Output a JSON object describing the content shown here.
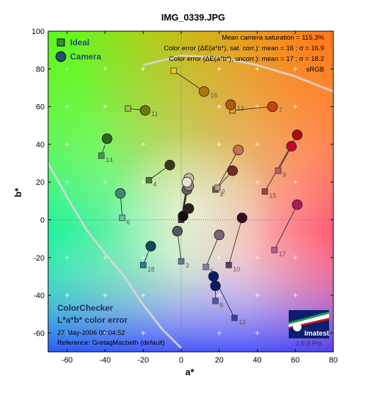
{
  "chart_data": {
    "type": "scatter",
    "title": "IMG_0339.JPG",
    "xlabel": "a*",
    "ylabel": "b*",
    "xlim": [
      -70,
      80
    ],
    "ylim": [
      -70,
      100
    ],
    "xticks": [
      -60,
      -40,
      -20,
      0,
      20,
      40,
      60,
      80
    ],
    "yticks": [
      -60,
      -40,
      -20,
      0,
      20,
      40,
      60,
      80,
      100
    ],
    "grid": true,
    "legend": {
      "placement": "top-left",
      "entries": [
        {
          "name": "Ideal",
          "marker": "square",
          "color": "#3a8a3a"
        },
        {
          "name": "Camera",
          "marker": "circle",
          "color": "#1f4f73"
        }
      ]
    },
    "stats": [
      "Mean camera saturation = 115.3%",
      "Color error (ΔE(a*b*), sat. corr.):  mean = 16 ;  σ = 16.9",
      "Color error (ΔE(a*b*), uncorr.):  mean = 17 ;  σ = 18.2",
      "sRGB"
    ],
    "info": {
      "line1": "ColorChecker",
      "line2": "L*a*b* color error",
      "date": "27-May-2006 00:04:52",
      "reference": "Reference: GretagMacbeth (default)"
    },
    "logo": {
      "name": "Imatest",
      "version": "1.6.9  Pro"
    },
    "patches": [
      {
        "id": "1",
        "ideal": [
          18,
          16
        ],
        "camera": [
          27,
          26
        ],
        "ideal_color": "#73523f",
        "camera_color": "#7a2a22"
      },
      {
        "id": "2",
        "ideal": [
          19,
          17
        ],
        "camera": [
          30,
          37
        ],
        "ideal_color": "#c2967d",
        "camera_color": "#c8704f"
      },
      {
        "id": "3",
        "ideal": [
          0,
          -22
        ],
        "camera": [
          -2,
          -6
        ],
        "ideal_color": "#5e7a9c",
        "camera_color": "#505a64"
      },
      {
        "id": "4",
        "ideal": [
          -17,
          21
        ],
        "camera": [
          -6,
          29
        ],
        "ideal_color": "#5a6b3e",
        "camera_color": "#3a3a14"
      },
      {
        "id": "5",
        "ideal": [
          13,
          -25
        ],
        "camera": [
          20,
          -8
        ],
        "ideal_color": "#8182b2",
        "camera_color": "#7a6578"
      },
      {
        "id": "6",
        "ideal": [
          -31,
          1
        ],
        "camera": [
          -32,
          14
        ],
        "ideal_color": "#66bcaa",
        "camera_color": "#3f8a72"
      },
      {
        "id": "7",
        "ideal": [
          27,
          58
        ],
        "camera": [
          48,
          60
        ],
        "ideal_color": "#da7f32",
        "camera_color": "#c8420e"
      },
      {
        "id": "8",
        "ideal": [
          18,
          -43
        ],
        "camera": [
          18,
          -35
        ],
        "ideal_color": "#4959a4",
        "camera_color": "#0a1a6e"
      },
      {
        "id": "9",
        "ideal": [
          51,
          26
        ],
        "camera": [
          58,
          39
        ],
        "ideal_color": "#c45a62",
        "camera_color": "#c00a32"
      },
      {
        "id": "10",
        "ideal": [
          25,
          -24
        ],
        "camera": [
          32,
          1
        ],
        "ideal_color": "#5e3c6c",
        "camera_color": "#3a0a24"
      },
      {
        "id": "11",
        "ideal": [
          -28,
          59
        ],
        "camera": [
          -19,
          58
        ],
        "ideal_color": "#a0bd40",
        "camera_color": "#6a7a0a"
      },
      {
        "id": "12",
        "ideal": [
          27,
          58
        ],
        "camera": [
          26,
          61
        ],
        "ideal_color": "#e5a12f",
        "camera_color": "#b05a0a"
      },
      {
        "id": "13",
        "ideal": [
          28,
          -52
        ],
        "camera": [
          17,
          -30
        ],
        "ideal_color": "#383f96",
        "camera_color": "#0a1a6a"
      },
      {
        "id": "14",
        "ideal": [
          -42,
          34
        ],
        "camera": [
          -39,
          43
        ],
        "ideal_color": "#479648",
        "camera_color": "#2a6a1e"
      },
      {
        "id": "15",
        "ideal": [
          44,
          15
        ],
        "camera": [
          61,
          45
        ],
        "ideal_color": "#b03c3a",
        "camera_color": "#b00a14"
      },
      {
        "id": "16",
        "ideal": [
          -4,
          79
        ],
        "camera": [
          12,
          68
        ],
        "ideal_color": "#eec72c",
        "camera_color": "#b0780a"
      },
      {
        "id": "17",
        "ideal": [
          49,
          -16
        ],
        "camera": [
          61,
          8
        ],
        "ideal_color": "#bc5598",
        "camera_color": "#b0185a"
      },
      {
        "id": "18",
        "ideal": [
          -20,
          -24
        ],
        "camera": [
          -16,
          -14
        ],
        "ideal_color": "#0888a6",
        "camera_color": "#0a4a5a"
      },
      {
        "id": "19",
        "ideal": [
          0,
          0
        ],
        "camera": [
          3,
          20
        ],
        "ideal_color": "#f3f3f2",
        "camera_color": "#e8e0d8"
      },
      {
        "id": "20",
        "ideal": [
          0,
          0
        ],
        "camera": [
          4,
          22
        ],
        "ideal_color": "#c8c8c8",
        "camera_color": "#c8bcb0"
      },
      {
        "id": "21",
        "ideal": [
          0,
          0
        ],
        "camera": [
          4,
          18
        ],
        "ideal_color": "#a0a0a0",
        "camera_color": "#968a80"
      },
      {
        "id": "22",
        "ideal": [
          0,
          0
        ],
        "camera": [
          3,
          16
        ],
        "ideal_color": "#7a7a79",
        "camera_color": "#6a5e54"
      },
      {
        "id": "23",
        "ideal": [
          0,
          0
        ],
        "camera": [
          4,
          6
        ],
        "ideal_color": "#555555",
        "camera_color": "#2a221c"
      },
      {
        "id": "24",
        "ideal": [
          0,
          0
        ],
        "camera": [
          1,
          2
        ],
        "ideal_color": "#343434",
        "camera_color": "#141008"
      }
    ],
    "labels_shown": [
      "1",
      "2",
      "3",
      "4",
      "5",
      "6",
      "7",
      "8",
      "9",
      "10",
      "11",
      "12",
      "13",
      "14",
      "15",
      "16",
      "17",
      "18"
    ]
  }
}
